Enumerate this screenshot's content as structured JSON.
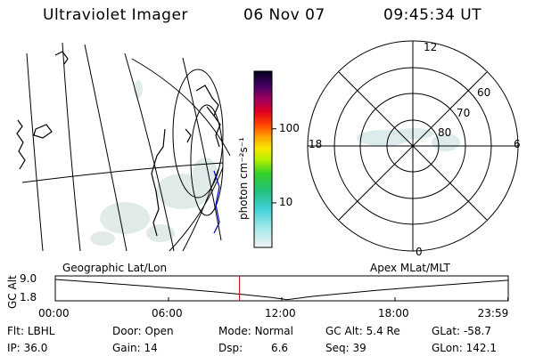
{
  "header": {
    "title": "Ultraviolet Imager",
    "date": "06 Nov 07",
    "time": "09:45:34 UT"
  },
  "colorbar": {
    "unit_label": "photon cm⁻²s⁻¹",
    "ticks": [
      {
        "value": 100,
        "label": "100"
      },
      {
        "value": 10,
        "label": "10"
      }
    ],
    "range": [
      2.5,
      600
    ],
    "scale": "log"
  },
  "polar_plot": {
    "mlt_labels": {
      "top": "12",
      "bottom": "0",
      "left": "18",
      "right": "6"
    },
    "lat_labels": [
      "60",
      "70",
      "80"
    ]
  },
  "panel_labels": {
    "left": "Geographic Lat/Lon",
    "right": "Apex MLat/MLT"
  },
  "altitude_plot": {
    "axis_title": "GC Alt",
    "y_ticks": [
      "9.0",
      "1.8"
    ],
    "x_ticks": [
      "00:00",
      "06:00",
      "12:00",
      "18:00",
      "23:59"
    ],
    "current_time_hours": 9.76,
    "perigee_hours": 12.3
  },
  "info": {
    "row1": [
      {
        "key": "Flt:",
        "value": "LBHL"
      },
      {
        "key": "Door:",
        "value": "Open"
      },
      {
        "key": "Mode:",
        "value": "Normal"
      },
      {
        "key": "GC Alt:",
        "value": "5.4 Re"
      },
      {
        "key": "GLat:",
        "value": "-58.7"
      }
    ],
    "row2": [
      {
        "key": "IP:",
        "value": "36.0"
      },
      {
        "key": "Gain:",
        "value": "14"
      },
      {
        "key": "Dsp:",
        "value": "6.6"
      },
      {
        "key": "Seq:",
        "value": "39"
      },
      {
        "key": "GLon:",
        "value": "142.1"
      }
    ]
  }
}
